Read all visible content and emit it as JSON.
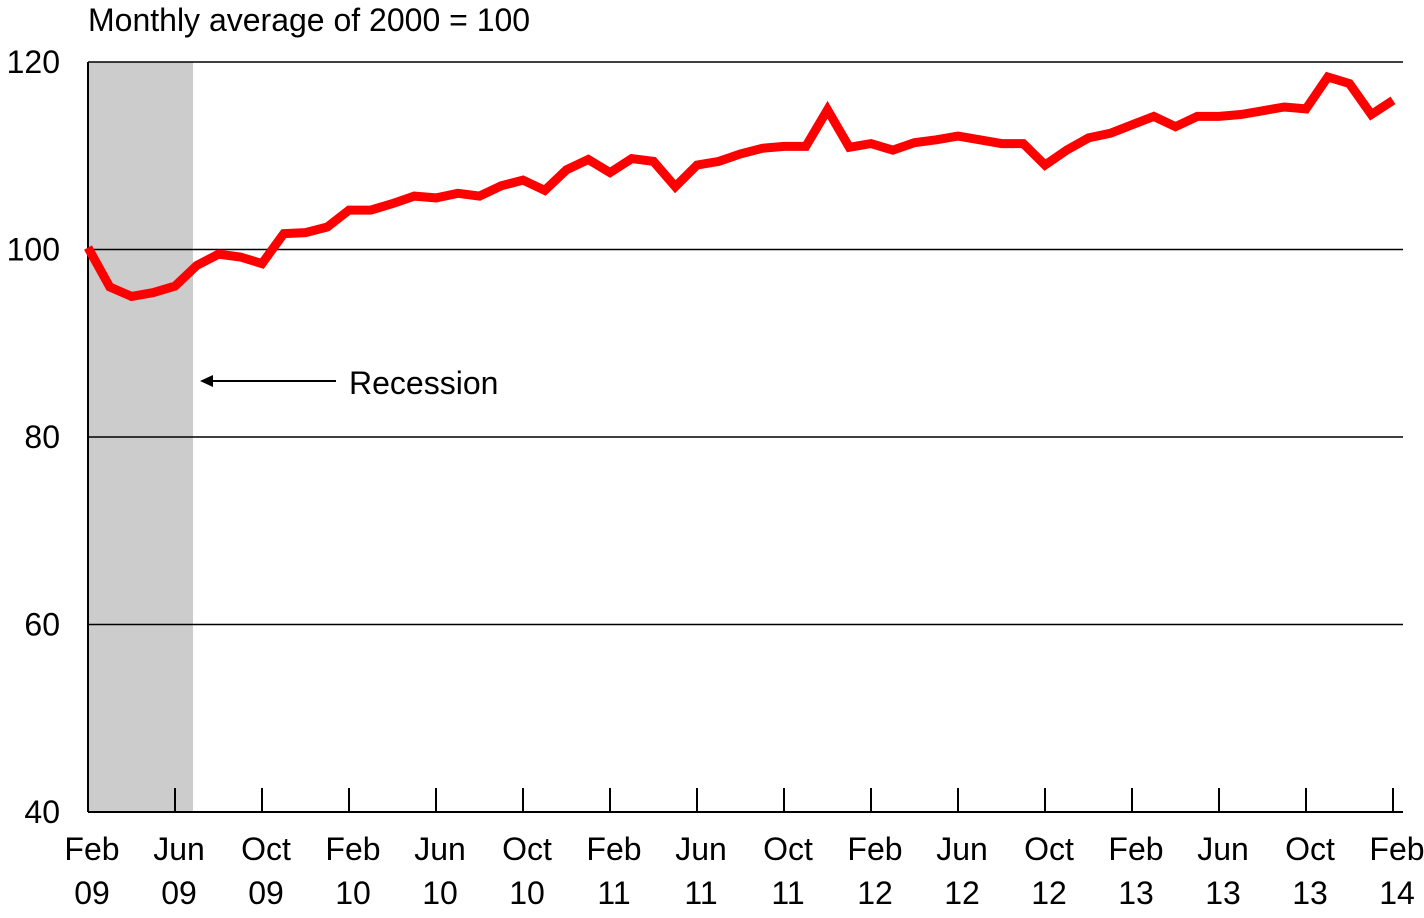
{
  "chart_data": {
    "type": "line",
    "ylabel": "Monthly average of 2000 = 100",
    "ylim": [
      40,
      120
    ],
    "yticks": [
      "40",
      "60",
      "80",
      "100",
      "120"
    ],
    "grid": true,
    "colors": {
      "line": "#ff0000",
      "recession": "#cccccc",
      "grid": "#000000"
    },
    "x_tick_labels": [
      {
        "month": "Feb",
        "year": "09"
      },
      {
        "month": "Jun",
        "year": "09"
      },
      {
        "month": "Oct",
        "year": "09"
      },
      {
        "month": "Feb",
        "year": "10"
      },
      {
        "month": "Jun",
        "year": "10"
      },
      {
        "month": "Oct",
        "year": "10"
      },
      {
        "month": "Feb",
        "year": "11"
      },
      {
        "month": "Jun",
        "year": "11"
      },
      {
        "month": "Oct",
        "year": "11"
      },
      {
        "month": "Feb",
        "year": "12"
      },
      {
        "month": "Jun",
        "year": "12"
      },
      {
        "month": "Oct",
        "year": "12"
      },
      {
        "month": "Feb",
        "year": "13"
      },
      {
        "month": "Jun",
        "year": "13"
      },
      {
        "month": "Oct",
        "year": "13"
      },
      {
        "month": "Feb",
        "year": "14"
      }
    ],
    "recession": {
      "start": "2009-02",
      "end": "2009-06",
      "label": "Recession"
    },
    "x": [
      "2009-02",
      "2009-03",
      "2009-04",
      "2009-05",
      "2009-06",
      "2009-07",
      "2009-08",
      "2009-09",
      "2009-10",
      "2009-11",
      "2009-12",
      "2010-01",
      "2010-02",
      "2010-03",
      "2010-04",
      "2010-05",
      "2010-06",
      "2010-07",
      "2010-08",
      "2010-09",
      "2010-10",
      "2010-11",
      "2010-12",
      "2011-01",
      "2011-02",
      "2011-03",
      "2011-04",
      "2011-05",
      "2011-06",
      "2011-07",
      "2011-08",
      "2011-09",
      "2011-10",
      "2011-11",
      "2011-12",
      "2012-01",
      "2012-02",
      "2012-03",
      "2012-04",
      "2012-05",
      "2012-06",
      "2012-07",
      "2012-08",
      "2012-09",
      "2012-10",
      "2012-11",
      "2012-12",
      "2013-01",
      "2013-02",
      "2013-03",
      "2013-04",
      "2013-05",
      "2013-06",
      "2013-07",
      "2013-08",
      "2013-09",
      "2013-10",
      "2013-11",
      "2013-12",
      "2014-01",
      "2014-02"
    ],
    "values": [
      100.2,
      96.0,
      95.0,
      95.4,
      96.1,
      98.3,
      99.5,
      99.2,
      98.5,
      101.7,
      101.8,
      102.4,
      104.2,
      104.2,
      104.9,
      105.7,
      105.5,
      106.0,
      105.7,
      106.8,
      107.4,
      106.3,
      108.5,
      109.6,
      108.2,
      109.7,
      109.4,
      106.7,
      109.0,
      109.4,
      110.2,
      110.8,
      111.0,
      111.0,
      114.9,
      110.9,
      111.3,
      110.6,
      111.4,
      111.7,
      112.1,
      111.7,
      111.3,
      111.3,
      109.0,
      110.6,
      111.9,
      112.4,
      113.3,
      114.2,
      113.1,
      114.2,
      114.2,
      114.4,
      114.8,
      115.2,
      115.0,
      118.4,
      117.7,
      114.4,
      115.9
    ]
  }
}
